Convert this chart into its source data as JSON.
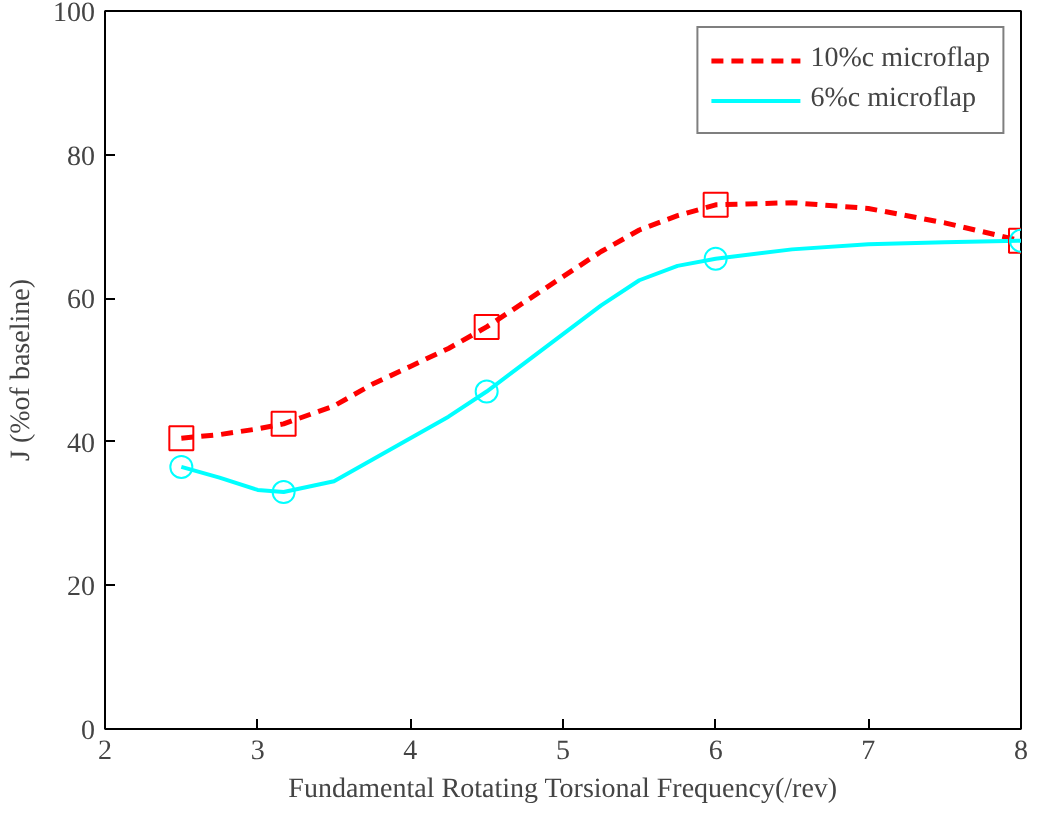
{
  "chart_data": {
    "type": "line",
    "xlabel": "Fundamental Rotating Torsional Frequency(/rev)",
    "ylabel": "J (%of baseline)",
    "series": [
      {
        "name": "10%c microflap",
        "color": "#ff0000",
        "marker": "none",
        "line_style": "dashed",
        "x": [
          2.5,
          2.75,
          3.0,
          3.17,
          3.5,
          3.75,
          4.0,
          4.25,
          4.5,
          4.75,
          5.0,
          5.25,
          5.5,
          5.75,
          6.0,
          6.5,
          7.0,
          7.5,
          8.0
        ],
        "values": [
          40.5,
          41,
          41.8,
          42.5,
          45,
          48,
          50.5,
          53,
          56,
          59.5,
          63,
          66.5,
          69.5,
          71.5,
          73,
          73.3,
          72.5,
          70.5,
          68
        ]
      },
      {
        "name": "6%c microflap",
        "color": "#00ffff",
        "marker": "none",
        "line_style": "solid",
        "x": [
          2.5,
          2.75,
          3.0,
          3.17,
          3.5,
          3.75,
          4.0,
          4.25,
          4.5,
          4.75,
          5.0,
          5.25,
          5.5,
          5.75,
          6.0,
          6.5,
          7.0,
          7.5,
          8.0
        ],
        "values": [
          36.5,
          35,
          33.3,
          33,
          34.5,
          37.5,
          40.5,
          43.5,
          47,
          51,
          55,
          59,
          62.5,
          64.5,
          65.5,
          66.8,
          67.5,
          67.8,
          68
        ]
      },
      {
        "type": "scatter",
        "color": "#ff0000",
        "marker": "square",
        "x": [
          2.5,
          3.17,
          4.5,
          6,
          8
        ],
        "values": [
          40.5,
          42.5,
          56,
          73,
          68
        ]
      },
      {
        "type": "scatter",
        "color": "#00ffff",
        "marker": "circle",
        "x": [
          2.5,
          3.17,
          4.5,
          6,
          8
        ],
        "values": [
          36.5,
          33,
          47,
          65.5,
          68
        ]
      }
    ],
    "xlim": [
      2,
      8
    ],
    "xticks": [
      2,
      3,
      4,
      5,
      6,
      7,
      8
    ],
    "ylim": [
      0,
      100
    ],
    "yticks": [
      0,
      20,
      40,
      60,
      80,
      100
    ],
    "grid": false,
    "legend": "top right"
  }
}
